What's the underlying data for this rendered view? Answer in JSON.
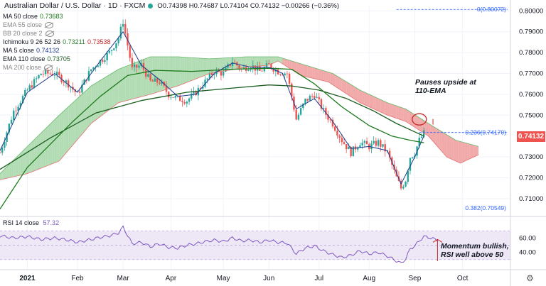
{
  "header": {
    "title": "Australian Dollar / U.S. Dollar · 1D · FXCM",
    "ohlc": "O0.74398 H0.74687 L0.74104 C0.74132 −0.00266 (−0.36%)"
  },
  "legend": [
    {
      "label": "MA 50 close",
      "value": "0.73683",
      "color": "#1b7a1b",
      "hidden": false
    },
    {
      "label": "EMA 55 close",
      "value": "",
      "color": "#888888",
      "hidden": true
    },
    {
      "label": "BB 20 close 2",
      "value": "",
      "color": "#888888",
      "hidden": true
    },
    {
      "label": "Ichimoku 9 26 52 26",
      "value": "0.73211",
      "value2": "0.73538",
      "color": "#2e7d32",
      "hidden": false
    },
    {
      "label": "MA 5 close",
      "value": "0.74132",
      "color": "#1e3a8a",
      "hidden": false
    },
    {
      "label": "EMA 110 close",
      "value": "0.73705",
      "color": "#1b5e20",
      "hidden": false
    },
    {
      "label": "MA 200 close",
      "value": "",
      "color": "#888888",
      "hidden": true
    }
  ],
  "annotations": {
    "ema_note": "Pauses upside at\n110-EMA",
    "rsi_note": "Momentum bullish,\nRSI well above 50"
  },
  "fib": {
    "top_label": "0(0.80072)",
    "mid_label": "0.236(0.74170)",
    "bottom_label": "0.382(0.70549)"
  },
  "price_tag": "0.74132",
  "rsi": {
    "label": "RSI 14 close",
    "value": "57.32"
  },
  "colors": {
    "up": "#26a69a",
    "down": "#ef5350",
    "cloud_bull": "#a5d6a7",
    "cloud_bear": "#ef9a9a",
    "rsi_band": "#ede7f6",
    "rsi_line": "#7e57c2"
  },
  "chart_data": {
    "type": "line",
    "price_axis": {
      "ticks": [
        0.8,
        0.79,
        0.78,
        0.77,
        0.76,
        0.75,
        0.73,
        0.72,
        0.71
      ],
      "ylim": [
        0.7045,
        0.8025
      ]
    },
    "rsi_axis": {
      "ticks": [
        60.0,
        40.0
      ],
      "ylim": [
        20,
        80
      ],
      "band": [
        30,
        70
      ]
    },
    "time_axis": {
      "labels": [
        "2021",
        "Feb",
        "Mar",
        "Apr",
        "May",
        "Jun",
        "Jul",
        "Aug",
        "Sep",
        "Oct"
      ],
      "positions": [
        0,
        22,
        42,
        63,
        86,
        106,
        128,
        150,
        170,
        191
      ],
      "xlim": [
        -12,
        212
      ]
    },
    "series": [
      {
        "key": "close",
        "points": [
          [
            -12,
            0.732
          ],
          [
            -6,
            0.752
          ],
          [
            0,
            0.762
          ],
          [
            6,
            0.77
          ],
          [
            12,
            0.77
          ],
          [
            18,
            0.765
          ],
          [
            22,
            0.76
          ],
          [
            28,
            0.772
          ],
          [
            32,
            0.776
          ],
          [
            36,
            0.78
          ],
          [
            40,
            0.787
          ],
          [
            42,
            0.795
          ],
          [
            46,
            0.772
          ],
          [
            50,
            0.774
          ],
          [
            54,
            0.766
          ],
          [
            58,
            0.766
          ],
          [
            62,
            0.76
          ],
          [
            66,
            0.758
          ],
          [
            70,
            0.757
          ],
          [
            74,
            0.761
          ],
          [
            78,
            0.766
          ],
          [
            82,
            0.771
          ],
          [
            86,
            0.77
          ],
          [
            90,
            0.776
          ],
          [
            94,
            0.772
          ],
          [
            98,
            0.774
          ],
          [
            102,
            0.771
          ],
          [
            106,
            0.774
          ],
          [
            110,
            0.771
          ],
          [
            114,
            0.77
          ],
          [
            118,
            0.748
          ],
          [
            122,
            0.757
          ],
          [
            126,
            0.76
          ],
          [
            130,
            0.752
          ],
          [
            134,
            0.746
          ],
          [
            138,
            0.738
          ],
          [
            142,
            0.732
          ],
          [
            146,
            0.737
          ],
          [
            150,
            0.735
          ],
          [
            154,
            0.737
          ],
          [
            158,
            0.732
          ],
          [
            162,
            0.72
          ],
          [
            164,
            0.715
          ],
          [
            166,
            0.719
          ],
          [
            168,
            0.73
          ],
          [
            170,
            0.732
          ],
          [
            172,
            0.738
          ],
          [
            174,
            0.7413
          ]
        ]
      },
      {
        "key": "ma5",
        "points": [
          [
            -12,
            0.733
          ],
          [
            0,
            0.761
          ],
          [
            12,
            0.77
          ],
          [
            22,
            0.761
          ],
          [
            32,
            0.776
          ],
          [
            42,
            0.79
          ],
          [
            50,
            0.774
          ],
          [
            58,
            0.767
          ],
          [
            66,
            0.759
          ],
          [
            74,
            0.76
          ],
          [
            82,
            0.77
          ],
          [
            90,
            0.775
          ],
          [
            98,
            0.773
          ],
          [
            106,
            0.773
          ],
          [
            112,
            0.77
          ],
          [
            118,
            0.753
          ],
          [
            126,
            0.758
          ],
          [
            134,
            0.747
          ],
          [
            142,
            0.734
          ],
          [
            150,
            0.735
          ],
          [
            158,
            0.733
          ],
          [
            164,
            0.717
          ],
          [
            170,
            0.73
          ],
          [
            174,
            0.74
          ]
        ]
      },
      {
        "key": "ma50",
        "points": [
          [
            -12,
            0.705
          ],
          [
            0,
            0.725
          ],
          [
            20,
            0.747
          ],
          [
            32,
            0.759
          ],
          [
            44,
            0.769
          ],
          [
            56,
            0.7715
          ],
          [
            72,
            0.771
          ],
          [
            90,
            0.772
          ],
          [
            106,
            0.7725
          ],
          [
            116,
            0.772
          ],
          [
            126,
            0.765
          ],
          [
            138,
            0.754
          ],
          [
            150,
            0.745
          ],
          [
            160,
            0.74
          ],
          [
            168,
            0.738
          ],
          [
            174,
            0.7368
          ]
        ]
      },
      {
        "key": "ema110",
        "points": [
          [
            -12,
            0.724
          ],
          [
            10,
            0.739
          ],
          [
            30,
            0.751
          ],
          [
            50,
            0.757
          ],
          [
            70,
            0.761
          ],
          [
            90,
            0.763
          ],
          [
            106,
            0.7645
          ],
          [
            116,
            0.764
          ],
          [
            128,
            0.762
          ],
          [
            140,
            0.758
          ],
          [
            152,
            0.752
          ],
          [
            162,
            0.746
          ],
          [
            170,
            0.742
          ],
          [
            174,
            0.74
          ]
        ]
      },
      {
        "key": "cloud_upper",
        "points": [
          [
            -12,
            0.722
          ],
          [
            0,
            0.735
          ],
          [
            14,
            0.75
          ],
          [
            28,
            0.764
          ],
          [
            40,
            0.772
          ],
          [
            54,
            0.778
          ],
          [
            66,
            0.778
          ],
          [
            80,
            0.777
          ],
          [
            96,
            0.778
          ],
          [
            110,
            0.778
          ],
          [
            122,
            0.774
          ],
          [
            134,
            0.77
          ],
          [
            146,
            0.762
          ],
          [
            158,
            0.756
          ],
          [
            166,
            0.753
          ],
          [
            176,
            0.746
          ],
          [
            188,
            0.738
          ],
          [
            198,
            0.735
          ]
        ]
      },
      {
        "key": "cloud_lower",
        "points": [
          [
            -12,
            0.719
          ],
          [
            0,
            0.722
          ],
          [
            14,
            0.728
          ],
          [
            28,
            0.746
          ],
          [
            40,
            0.756
          ],
          [
            54,
            0.76
          ],
          [
            66,
            0.764
          ],
          [
            80,
            0.77
          ],
          [
            96,
            0.773
          ],
          [
            106,
            0.774
          ],
          [
            110,
            0.776
          ],
          [
            120,
            0.769
          ],
          [
            132,
            0.766
          ],
          [
            146,
            0.756
          ],
          [
            158,
            0.75
          ],
          [
            166,
            0.747
          ],
          [
            176,
            0.74
          ],
          [
            184,
            0.73
          ],
          [
            190,
            0.727
          ],
          [
            198,
            0.731
          ]
        ]
      },
      {
        "key": "rsi",
        "points": [
          [
            -12,
            63
          ],
          [
            -6,
            60
          ],
          [
            0,
            62
          ],
          [
            6,
            58
          ],
          [
            12,
            60
          ],
          [
            18,
            57
          ],
          [
            22,
            54
          ],
          [
            28,
            58
          ],
          [
            32,
            61
          ],
          [
            36,
            63
          ],
          [
            40,
            67
          ],
          [
            42,
            75
          ],
          [
            46,
            52
          ],
          [
            50,
            54
          ],
          [
            54,
            48
          ],
          [
            58,
            52
          ],
          [
            62,
            47
          ],
          [
            66,
            46
          ],
          [
            70,
            50
          ],
          [
            74,
            52
          ],
          [
            78,
            55
          ],
          [
            82,
            57
          ],
          [
            86,
            55
          ],
          [
            90,
            60
          ],
          [
            94,
            56
          ],
          [
            98,
            57
          ],
          [
            102,
            54
          ],
          [
            106,
            57
          ],
          [
            110,
            54
          ],
          [
            114,
            53
          ],
          [
            118,
            38
          ],
          [
            122,
            46
          ],
          [
            126,
            49
          ],
          [
            130,
            42
          ],
          [
            134,
            37
          ],
          [
            138,
            33
          ],
          [
            142,
            36
          ],
          [
            146,
            42
          ],
          [
            150,
            38
          ],
          [
            154,
            40
          ],
          [
            158,
            35
          ],
          [
            162,
            28
          ],
          [
            164,
            25
          ],
          [
            166,
            31
          ],
          [
            168,
            45
          ],
          [
            170,
            49
          ],
          [
            172,
            56
          ],
          [
            174,
            62
          ],
          [
            177,
            60
          ],
          [
            180,
            57
          ]
        ]
      }
    ]
  }
}
